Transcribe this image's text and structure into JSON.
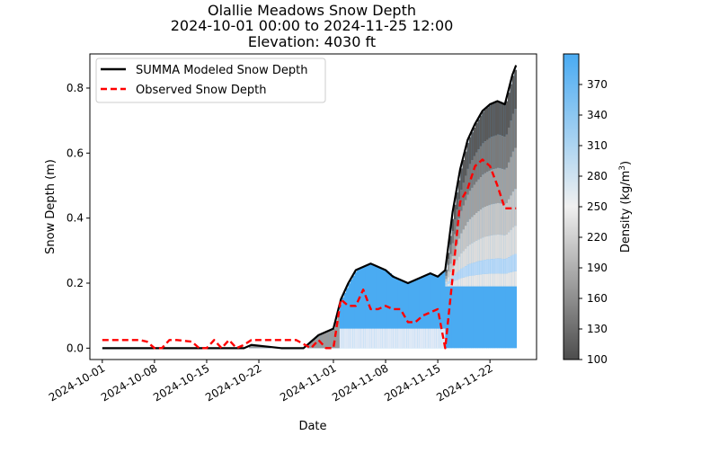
{
  "chart_data": {
    "type": "line",
    "title": [
      "Olallie Meadows Snow Depth",
      "2024-10-01 00:00 to 2024-11-25 12:00",
      "Elevation: 4030 ft"
    ],
    "xlabel": "Date",
    "ylabel": "Snow Depth (m)",
    "xlim": [
      "2024-09-29T08:00",
      "2024-11-28T06:00"
    ],
    "ylim": [
      -0.035,
      0.905
    ],
    "xticks": [
      "2024-10-01",
      "2024-10-08",
      "2024-10-15",
      "2024-10-22",
      "2024-11-01",
      "2024-11-08",
      "2024-11-15",
      "2024-11-22"
    ],
    "yticks": [
      0.0,
      0.2,
      0.4,
      0.6,
      0.8
    ],
    "ytick_labels": [
      "0.0",
      "0.2",
      "0.4",
      "0.6",
      "0.8"
    ],
    "grid": false,
    "legend_position": "top-left",
    "colorbar": {
      "label": "Density (kg/m³)",
      "label_main": "Density (kg/m",
      "label_sup": "3",
      "label_end": ")",
      "range": [
        100,
        400
      ],
      "ticks": [
        100,
        130,
        160,
        190,
        220,
        250,
        280,
        310,
        340,
        370
      ],
      "colors": [
        "#4d4d4d",
        "#f0f0f0",
        "#4aabf2"
      ]
    },
    "series": [
      {
        "name": "SUMMA Modeled Snow Depth",
        "color": "#000000",
        "style": "solid",
        "x": [
          "2024-10-01",
          "2024-10-20",
          "2024-10-21",
          "2024-10-25",
          "2024-10-28",
          "2024-10-29",
          "2024-10-30",
          "2024-10-31",
          "2024-11-01",
          "2024-11-02",
          "2024-11-03",
          "2024-11-04",
          "2024-11-05",
          "2024-11-06",
          "2024-11-07",
          "2024-11-08",
          "2024-11-09",
          "2024-11-10",
          "2024-11-11",
          "2024-11-12",
          "2024-11-13",
          "2024-11-14",
          "2024-11-15",
          "2024-11-16",
          "2024-11-17",
          "2024-11-18",
          "2024-11-19",
          "2024-11-20",
          "2024-11-21",
          "2024-11-22",
          "2024-11-23",
          "2024-11-24",
          "2024-11-25",
          "2024-11-25T12:00"
        ],
        "y": [
          0.0,
          0.0,
          0.01,
          0.0,
          0.0,
          0.02,
          0.04,
          0.05,
          0.06,
          0.15,
          0.2,
          0.24,
          0.25,
          0.26,
          0.25,
          0.24,
          0.22,
          0.21,
          0.2,
          0.21,
          0.22,
          0.23,
          0.22,
          0.24,
          0.42,
          0.55,
          0.64,
          0.69,
          0.73,
          0.75,
          0.76,
          0.75,
          0.84,
          0.87
        ]
      },
      {
        "name": "Observed Snow Depth",
        "color": "#ff0000",
        "style": "dashed",
        "x": [
          "2024-10-01",
          "2024-10-06",
          "2024-10-07",
          "2024-10-08",
          "2024-10-09",
          "2024-10-10",
          "2024-10-11",
          "2024-10-13",
          "2024-10-14",
          "2024-10-15",
          "2024-10-16",
          "2024-10-17",
          "2024-10-18",
          "2024-10-19",
          "2024-10-20",
          "2024-10-21",
          "2024-10-22",
          "2024-10-26",
          "2024-10-27",
          "2024-10-29",
          "2024-10-30",
          "2024-10-31",
          "2024-11-01",
          "2024-11-02",
          "2024-11-03",
          "2024-11-04",
          "2024-11-05",
          "2024-11-06",
          "2024-11-07",
          "2024-11-08",
          "2024-11-09",
          "2024-11-10",
          "2024-11-11",
          "2024-11-12",
          "2024-11-13",
          "2024-11-14",
          "2024-11-15",
          "2024-11-16",
          "2024-11-17",
          "2024-11-18",
          "2024-11-19",
          "2024-11-20",
          "2024-11-21",
          "2024-11-22",
          "2024-11-23",
          "2024-11-24",
          "2024-11-25",
          "2024-11-25T12:00"
        ],
        "y": [
          0.025,
          0.025,
          0.02,
          0.0,
          0.0,
          0.025,
          0.025,
          0.02,
          0.0,
          0.0,
          0.025,
          0.0,
          0.025,
          0.0,
          0.01,
          0.025,
          0.025,
          0.025,
          0.025,
          0.0,
          0.025,
          0.0,
          0.0,
          0.15,
          0.13,
          0.13,
          0.18,
          0.12,
          0.12,
          0.13,
          0.12,
          0.12,
          0.08,
          0.08,
          0.1,
          0.11,
          0.12,
          0.0,
          0.22,
          0.45,
          0.49,
          0.56,
          0.58,
          0.56,
          0.5,
          0.43,
          0.43,
          0.43
        ]
      }
    ]
  }
}
